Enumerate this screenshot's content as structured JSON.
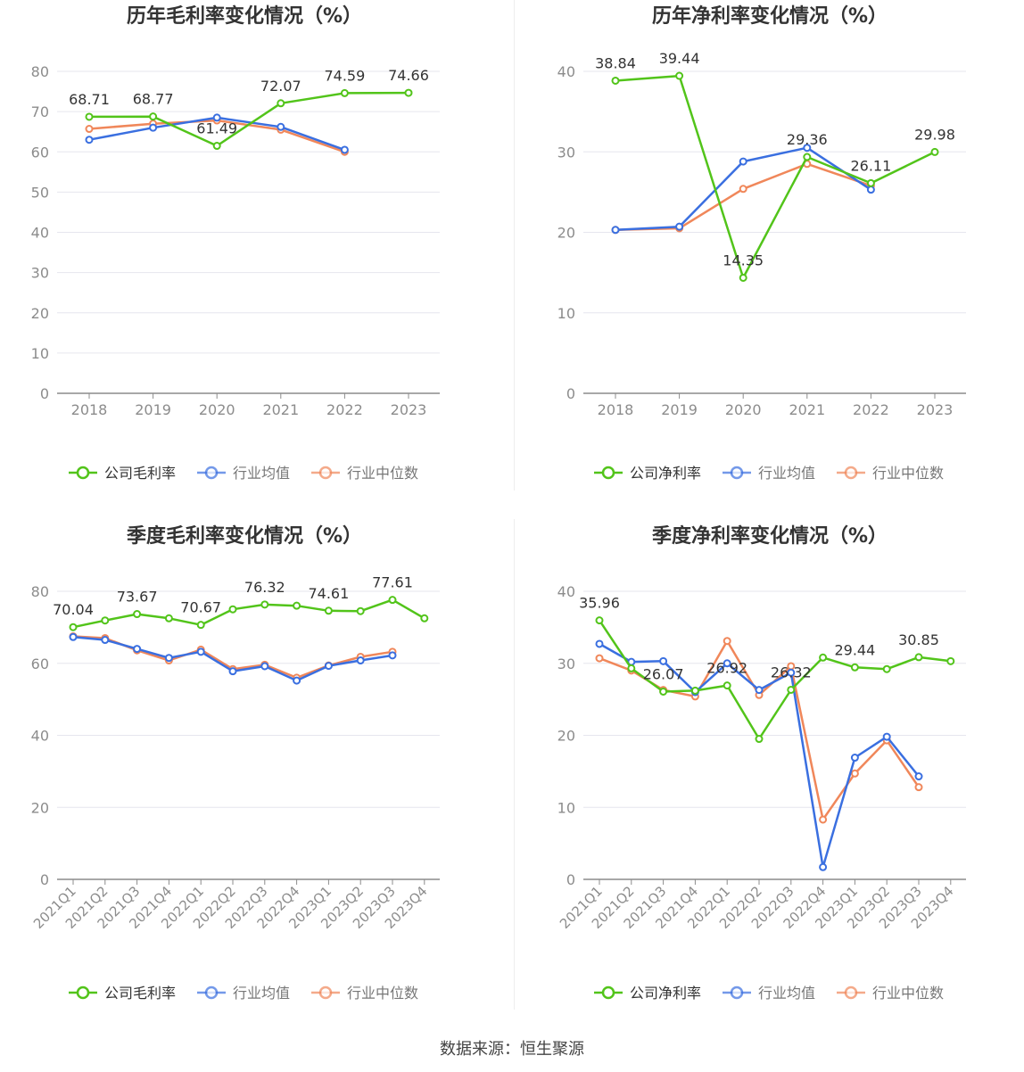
{
  "source": "数据来源：恒生聚源",
  "colors": {
    "company": "#52c41a",
    "avg": "#3a6fe0",
    "median": "#f0875a",
    "grid": "#e6e6ee",
    "axis": "#8c8c8c",
    "tick": "#8c8c8c",
    "label": "#333333",
    "title": "#333333"
  },
  "chart_data": [
    {
      "type": "line",
      "title": "历年毛利率变化情况（%）",
      "categories": [
        "2018",
        "2019",
        "2020",
        "2021",
        "2022",
        "2023"
      ],
      "ylim": [
        0,
        80
      ],
      "yticks": [
        0,
        10,
        20,
        30,
        40,
        50,
        60,
        70,
        80
      ],
      "grid": true,
      "legend_position": "bottom-center",
      "series": [
        {
          "name": "公司毛利率",
          "values": [
            68.71,
            68.77,
            61.49,
            72.07,
            74.59,
            74.66
          ],
          "labels": [
            "68.71",
            "68.77",
            "61.49",
            "72.07",
            "74.59",
            "74.66"
          ]
        },
        {
          "name": "行业均值",
          "values": [
            63.0,
            66.0,
            68.5,
            66.2,
            60.5,
            null
          ]
        },
        {
          "name": "行业中位数",
          "values": [
            65.7,
            67.0,
            67.8,
            65.5,
            60.0,
            null
          ]
        }
      ]
    },
    {
      "type": "line",
      "title": "历年净利率变化情况（%）",
      "categories": [
        "2018",
        "2019",
        "2020",
        "2021",
        "2022",
        "2023"
      ],
      "ylim": [
        0,
        40
      ],
      "yticks": [
        0,
        10,
        20,
        30,
        40
      ],
      "grid": true,
      "legend_position": "bottom-center",
      "series": [
        {
          "name": "公司净利率",
          "values": [
            38.84,
            39.44,
            14.35,
            29.36,
            26.11,
            29.98
          ],
          "labels": [
            "38.84",
            "39.44",
            "14.35",
            "29.36",
            "26.11",
            "29.98"
          ]
        },
        {
          "name": "行业均值",
          "values": [
            20.3,
            20.7,
            28.8,
            30.5,
            25.3,
            null
          ]
        },
        {
          "name": "行业中位数",
          "values": [
            20.3,
            20.5,
            25.4,
            28.5,
            25.8,
            null
          ]
        }
      ]
    },
    {
      "type": "line",
      "title": "季度毛利率变化情况（%）",
      "categories": [
        "2021Q1",
        "2021Q2",
        "2021Q3",
        "2021Q4",
        "2022Q1",
        "2022Q2",
        "2022Q3",
        "2022Q4",
        "2023Q1",
        "2023Q2",
        "2023Q3",
        "2023Q4"
      ],
      "ylim": [
        0,
        80
      ],
      "yticks": [
        0,
        20,
        40,
        60,
        80
      ],
      "grid": true,
      "legend_position": "bottom-center",
      "series": [
        {
          "name": "公司毛利率",
          "values": [
            70.04,
            71.9,
            73.67,
            72.5,
            70.67,
            75.0,
            76.32,
            76.0,
            74.61,
            74.5,
            77.61,
            72.5
          ],
          "labels": [
            "70.04",
            "",
            "73.67",
            "",
            "70.67",
            "",
            "76.32",
            "",
            "74.61",
            "",
            "77.61",
            ""
          ]
        },
        {
          "name": "行业均值",
          "values": [
            67.3,
            66.5,
            64.0,
            61.5,
            63.2,
            57.8,
            59.2,
            55.2,
            59.3,
            60.8,
            62.2,
            null
          ]
        },
        {
          "name": "行业中位数",
          "values": [
            67.5,
            67.0,
            63.6,
            60.8,
            63.8,
            58.4,
            59.6,
            56.0,
            59.4,
            61.8,
            63.2,
            null
          ]
        }
      ]
    },
    {
      "type": "line",
      "title": "季度净利率变化情况（%）",
      "categories": [
        "2021Q1",
        "2021Q2",
        "2021Q3",
        "2021Q4",
        "2022Q1",
        "2022Q2",
        "2022Q3",
        "2022Q4",
        "2023Q1",
        "2023Q2",
        "2023Q3",
        "2023Q4"
      ],
      "ylim": [
        0,
        40
      ],
      "yticks": [
        0,
        10,
        20,
        30,
        40
      ],
      "grid": true,
      "legend_position": "bottom-center",
      "series": [
        {
          "name": "公司净利率",
          "values": [
            35.96,
            29.3,
            26.07,
            26.2,
            26.92,
            19.5,
            26.32,
            30.8,
            29.44,
            29.2,
            30.85,
            30.3
          ],
          "labels": [
            "35.96",
            "",
            "26.07",
            "",
            "26.92",
            "",
            "26.32",
            "",
            "29.44",
            "",
            "30.85",
            ""
          ]
        },
        {
          "name": "行业均值",
          "values": [
            32.7,
            30.2,
            30.3,
            26.0,
            30.0,
            26.3,
            28.7,
            1.7,
            16.9,
            19.8,
            14.3,
            null
          ]
        },
        {
          "name": "行业中位数",
          "values": [
            30.7,
            29.0,
            26.3,
            25.4,
            33.1,
            25.6,
            29.6,
            8.3,
            14.7,
            19.3,
            12.8,
            null
          ]
        }
      ]
    }
  ]
}
